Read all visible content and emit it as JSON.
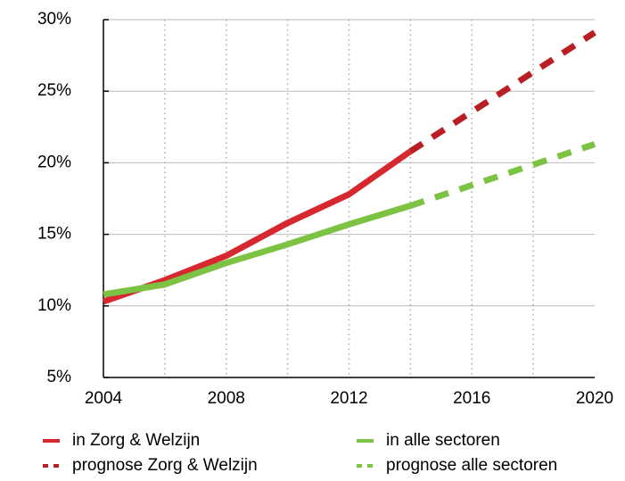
{
  "chart_data": {
    "type": "line",
    "xlim": [
      2004,
      2020
    ],
    "xticks": [
      2004,
      2008,
      2012,
      2016,
      2020
    ],
    "xminorticks": [
      2006,
      2008,
      2010,
      2012,
      2014,
      2016,
      2018
    ],
    "ylim": [
      5,
      30
    ],
    "yticks": [
      {
        "value": 5,
        "label": "5%"
      },
      {
        "value": 10,
        "label": "10%"
      },
      {
        "value": 15,
        "label": "15%"
      },
      {
        "value": 20,
        "label": "20%"
      },
      {
        "value": 25,
        "label": "25%"
      },
      {
        "value": 30,
        "label": "30%"
      }
    ],
    "grid": true,
    "legend": "bottom",
    "series": [
      {
        "name": "in Zorg & Welzijn",
        "color": "#d8282f",
        "dashed": false,
        "x": [
          2004,
          2006,
          2008,
          2010,
          2012,
          2014
        ],
        "values": [
          10.3,
          11.8,
          13.5,
          15.8,
          17.8,
          20.8
        ]
      },
      {
        "name": "prognose Zorg & Welzijn",
        "color": "#b81f25",
        "dashed": true,
        "x": [
          2014,
          2020
        ],
        "values": [
          20.8,
          29.1
        ]
      },
      {
        "name": "in alle sectoren",
        "color": "#7cc243",
        "dashed": false,
        "x": [
          2004,
          2006,
          2008,
          2010,
          2012,
          2014
        ],
        "values": [
          10.8,
          11.5,
          13.0,
          14.3,
          15.7,
          17.0
        ]
      },
      {
        "name": "prognose alle sectoren",
        "color": "#7cc243",
        "dashed": true,
        "x": [
          2014,
          2020
        ],
        "values": [
          17.0,
          21.3
        ]
      }
    ]
  }
}
